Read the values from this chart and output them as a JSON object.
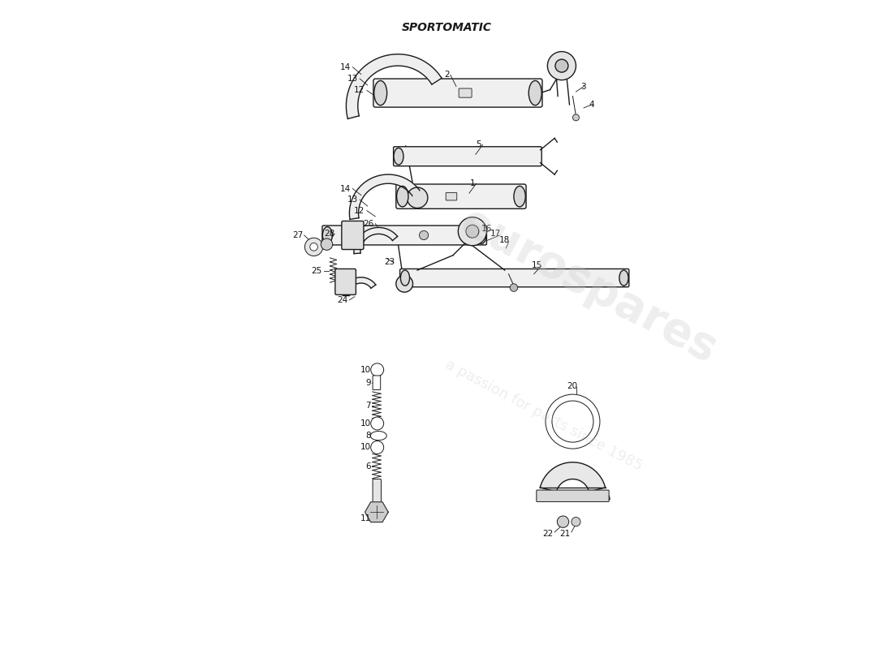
{
  "title": "SPORTOMATIC",
  "bg_color": "#ffffff",
  "line_color": "#1a1a1a",
  "label_color": "#111111",
  "fig_width": 11.0,
  "fig_height": 8.0,
  "font_size_title": 10,
  "font_size_labels": 7.5
}
